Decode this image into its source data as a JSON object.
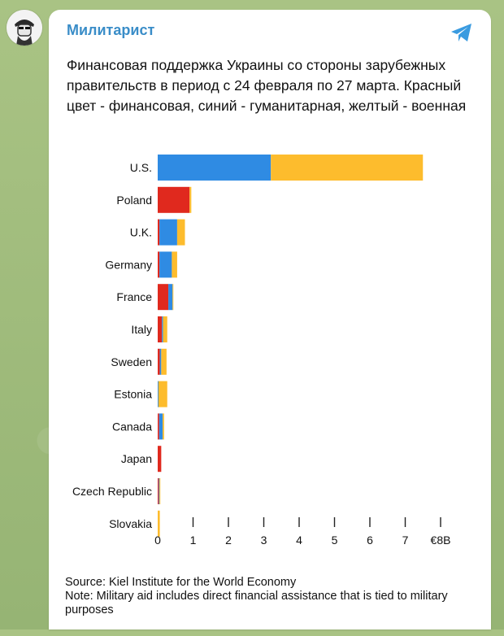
{
  "channel": {
    "name": "Милитарист",
    "text": "Финансовая поддержка Украины со стороны зарубежных правительств в период с 24 февраля по 27 марта. Красный цвет - финансовая, синий - гуманитарная, желтый - военная"
  },
  "icons": {
    "avatar": "avatar-icon",
    "share": "telegram-share-icon"
  },
  "colors": {
    "financial": "#e0291e",
    "humanitarian": "#2f8be3",
    "military": "#fdbc2d",
    "accent": "#3a8dc8"
  },
  "chart_data": {
    "type": "bar",
    "orientation": "horizontal",
    "stacked": true,
    "categories": [
      "U.S.",
      "Poland",
      "U.K.",
      "Germany",
      "France",
      "Italy",
      "Sweden",
      "Estonia",
      "Canada",
      "Japan",
      "Czech Republic",
      "Slovakia"
    ],
    "series": [
      {
        "color": "#e0291e",
        "values": [
          0,
          0.9,
          0.05,
          0.05,
          0.3,
          0.12,
          0.06,
          0,
          0.04,
          0.1,
          0.03,
          0
        ]
      },
      {
        "color": "#2f8be3",
        "values": [
          3.2,
          0,
          0.5,
          0.35,
          0.12,
          0.03,
          0.04,
          0.02,
          0.1,
          0,
          0.02,
          0
        ]
      },
      {
        "color": "#fdbc2d",
        "values": [
          4.3,
          0.05,
          0.22,
          0.15,
          0.02,
          0.12,
          0.15,
          0.25,
          0.04,
          0,
          0.02,
          0.06
        ]
      }
    ],
    "xticks": [
      "0",
      "1",
      "2",
      "3",
      "4",
      "5",
      "6",
      "7",
      "€8B"
    ],
    "xlim": [
      0,
      8
    ],
    "grid": false,
    "source": "Source: Kiel Institute for the World Economy",
    "note": "Note: Military aid includes direct financial assistance that is tied to military purposes"
  }
}
